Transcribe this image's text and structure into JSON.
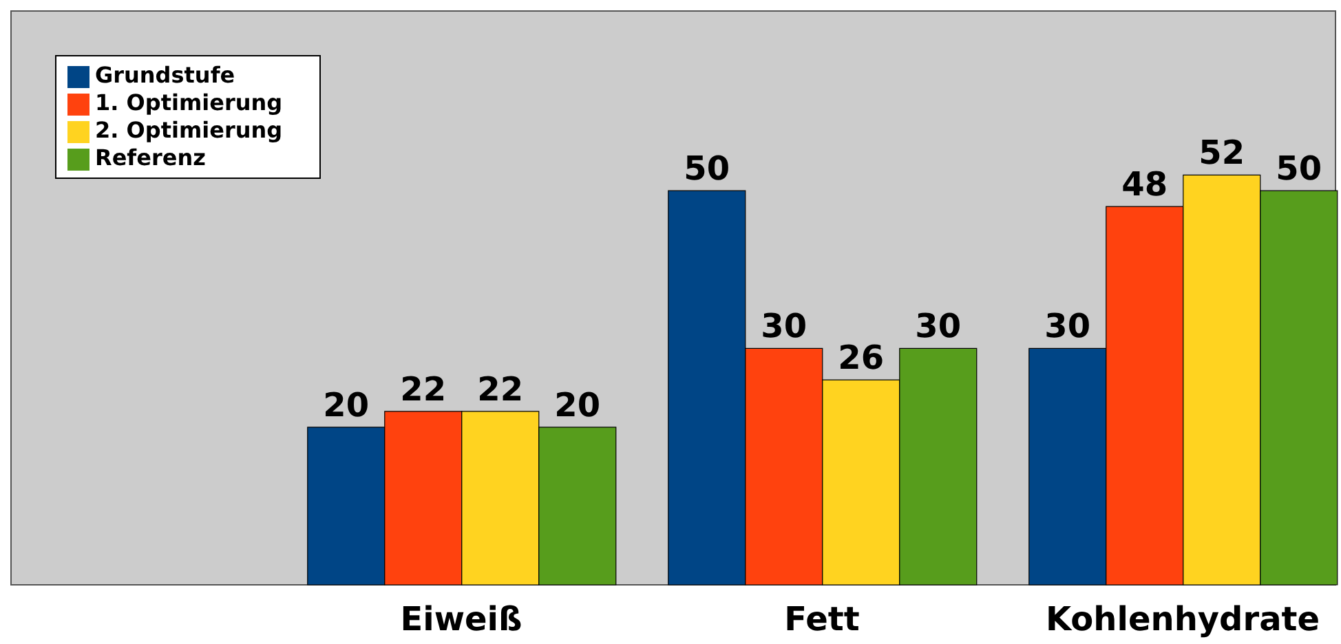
{
  "chart_data": {
    "type": "bar",
    "categories": [
      "Eiweiß",
      "Fett",
      "Kohlenhydrate"
    ],
    "series": [
      {
        "name": "Grundstufe",
        "color": "#004586",
        "values": [
          20,
          50,
          30
        ]
      },
      {
        "name": "1. Optimierung",
        "color": "#ff420e",
        "values": [
          22,
          30,
          48
        ]
      },
      {
        "name": "2. Optimierung",
        "color": "#ffd320",
        "values": [
          22,
          26,
          52
        ]
      },
      {
        "name": "Referenz",
        "color": "#579d1c",
        "values": [
          20,
          30,
          50
        ]
      }
    ],
    "data_labels": true,
    "legend": "top left"
  }
}
